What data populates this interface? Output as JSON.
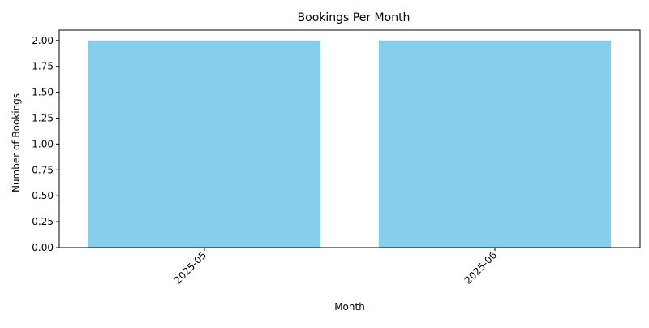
{
  "chart_data": {
    "type": "bar",
    "title": "Bookings Per Month",
    "xlabel": "Month",
    "ylabel": "Number of Bookings",
    "categories": [
      "2025-05",
      "2025-06"
    ],
    "values": [
      2,
      2
    ],
    "ylim": [
      0,
      2.1
    ],
    "yticks": [
      0.0,
      0.25,
      0.5,
      0.75,
      1.0,
      1.25,
      1.5,
      1.75,
      2.0
    ],
    "ytick_labels": [
      "0.00",
      "0.25",
      "0.50",
      "0.75",
      "1.00",
      "1.25",
      "1.50",
      "1.75",
      "2.00"
    ],
    "xtick_rotation_deg": 45,
    "bar_color": "#87CEEB",
    "grid": false,
    "legend": "none"
  }
}
